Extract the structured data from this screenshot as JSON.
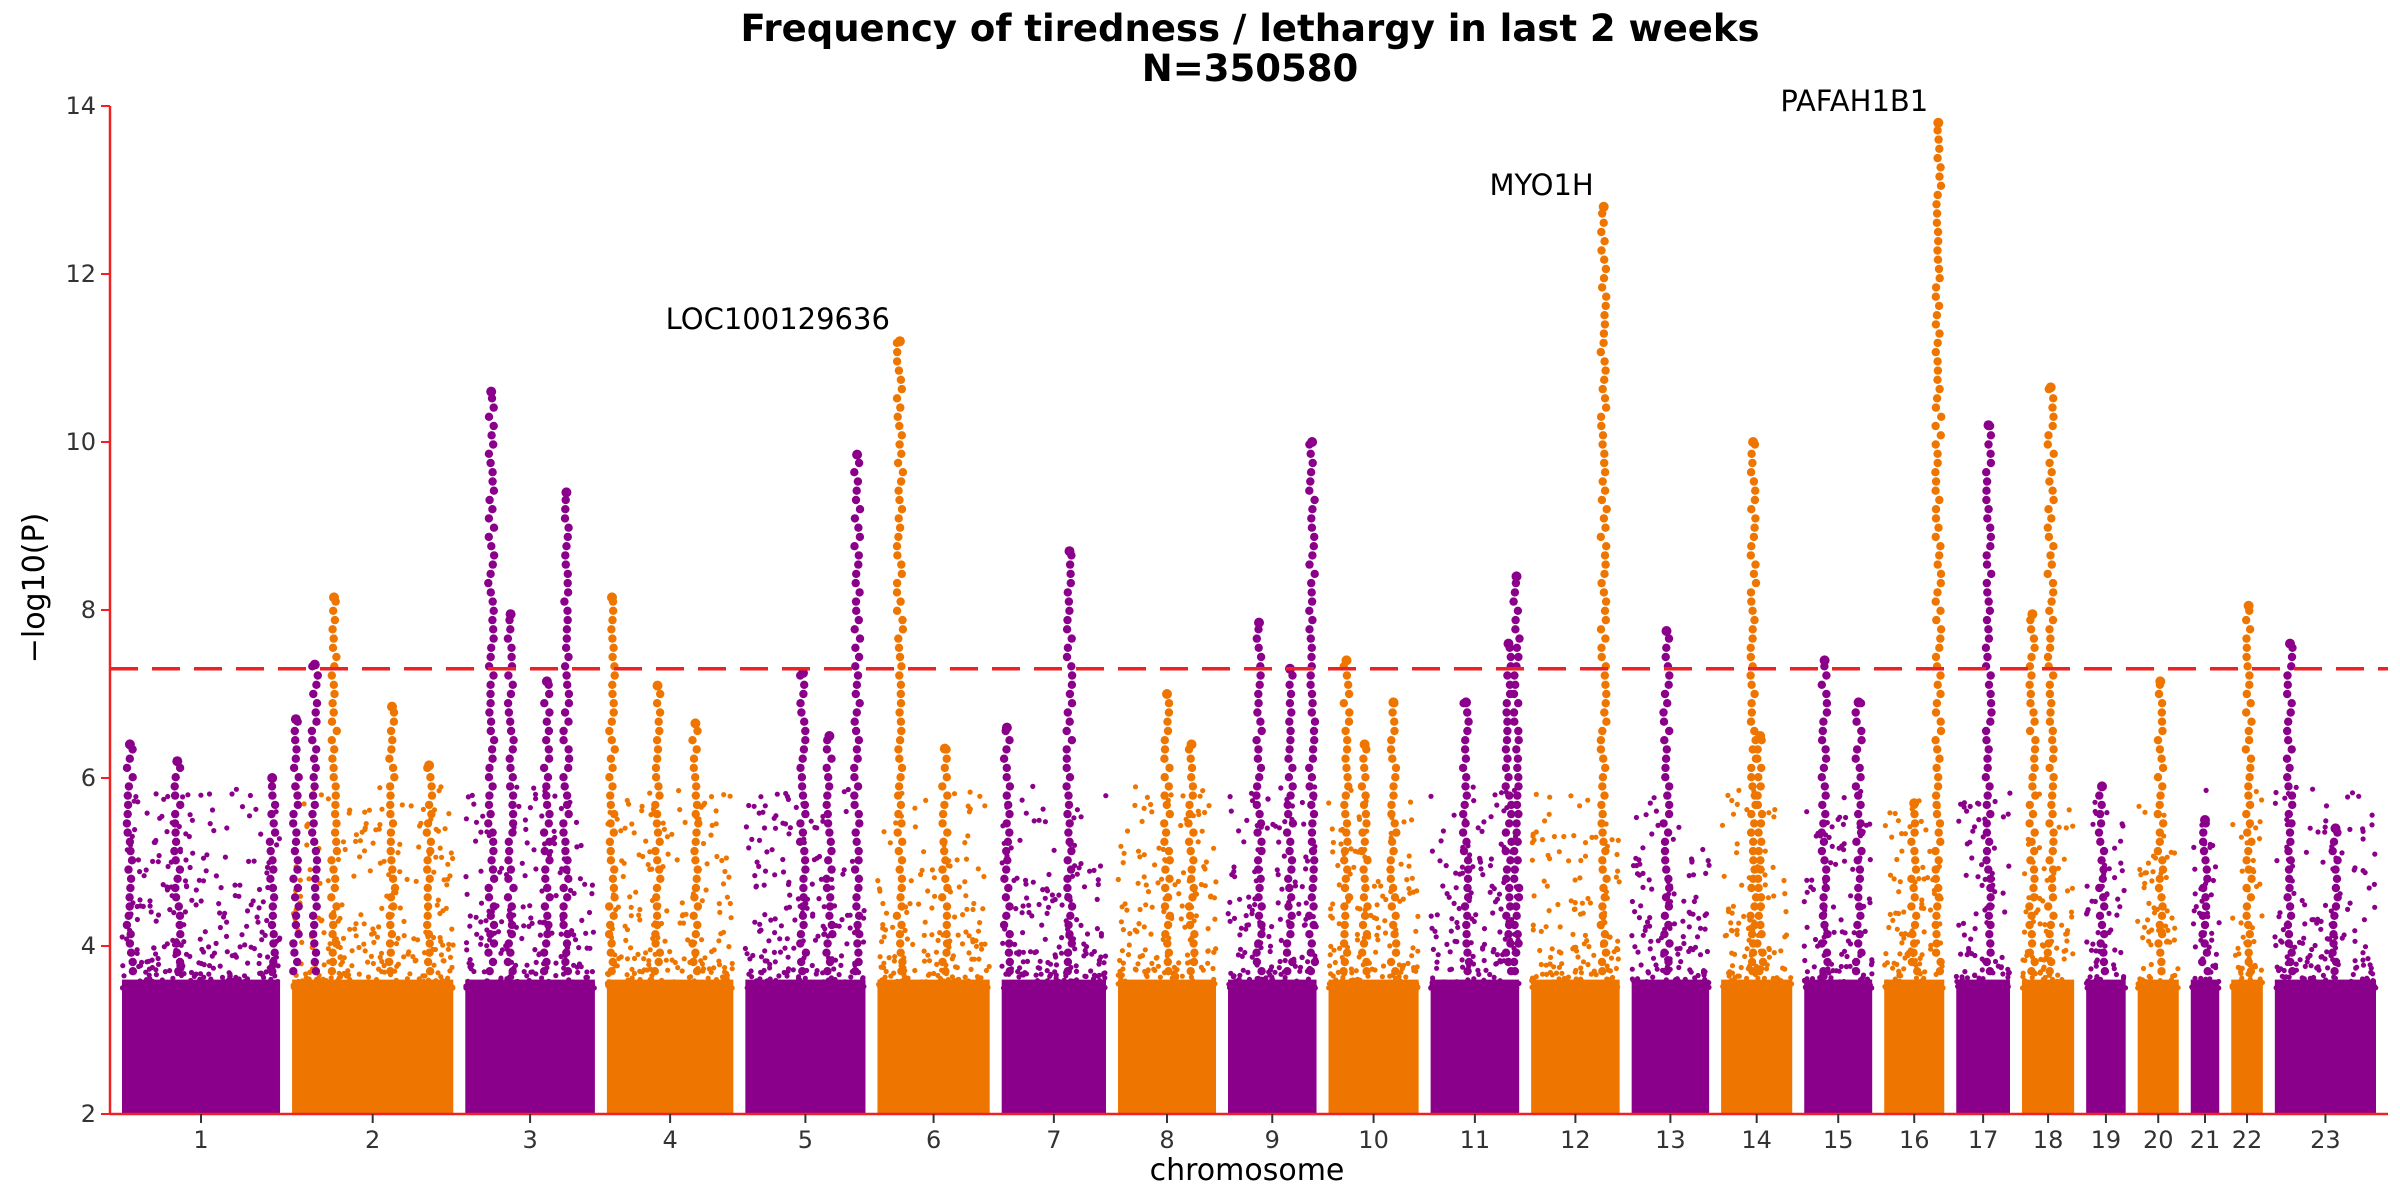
{
  "chart_data": {
    "type": "scatter",
    "title": "Frequency of tiredness / lethargy in last 2 weeks",
    "subtitle": "N=350580",
    "xlabel": "chromosome",
    "ylabel": "−log10(P)",
    "ylim": [
      2,
      14
    ],
    "yticks": [
      2,
      4,
      6,
      8,
      10,
      12,
      14
    ],
    "significance_threshold": 7.3,
    "colors": {
      "odd": "#8b008b",
      "even": "#ee7600",
      "threshold": "#ee2222",
      "axis": "#ee2222"
    },
    "chromosomes": [
      {
        "label": "1",
        "length": 1.0
      },
      {
        "label": "2",
        "length": 1.02
      },
      {
        "label": "3",
        "length": 0.82
      },
      {
        "label": "4",
        "length": 0.8
      },
      {
        "label": "5",
        "length": 0.76
      },
      {
        "label": "6",
        "length": 0.71
      },
      {
        "label": "7",
        "length": 0.66
      },
      {
        "label": "8",
        "length": 0.62
      },
      {
        "label": "9",
        "length": 0.56
      },
      {
        "label": "10",
        "length": 0.57
      },
      {
        "label": "11",
        "length": 0.56
      },
      {
        "label": "12",
        "length": 0.56
      },
      {
        "label": "13",
        "length": 0.49
      },
      {
        "label": "14",
        "length": 0.45
      },
      {
        "label": "15",
        "length": 0.43
      },
      {
        "label": "16",
        "length": 0.38
      },
      {
        "label": "17",
        "length": 0.34
      },
      {
        "label": "18",
        "length": 0.33
      },
      {
        "label": "19",
        "length": 0.25
      },
      {
        "label": "20",
        "length": 0.26
      },
      {
        "label": "21",
        "length": 0.18
      },
      {
        "label": "22",
        "length": 0.2
      },
      {
        "label": "23",
        "length": 0.64
      }
    ],
    "peaks": [
      {
        "chr": "1",
        "pos": 0.05,
        "y": 6.4
      },
      {
        "chr": "1",
        "pos": 0.35,
        "y": 6.2
      },
      {
        "chr": "1",
        "pos": 0.95,
        "y": 6.0
      },
      {
        "chr": "1",
        "pos": 1.1,
        "y": 6.7
      },
      {
        "chr": "1",
        "pos": 1.22,
        "y": 7.35
      },
      {
        "chr": "2",
        "pos": 0.26,
        "y": 8.15
      },
      {
        "chr": "2",
        "pos": 0.62,
        "y": 6.85
      },
      {
        "chr": "2",
        "pos": 0.85,
        "y": 6.15
      },
      {
        "chr": "3",
        "pos": 0.2,
        "y": 10.6
      },
      {
        "chr": "3",
        "pos": 0.35,
        "y": 7.95
      },
      {
        "chr": "3",
        "pos": 0.63,
        "y": 7.15
      },
      {
        "chr": "3",
        "pos": 0.78,
        "y": 9.4
      },
      {
        "chr": "4",
        "pos": 0.04,
        "y": 8.15
      },
      {
        "chr": "4",
        "pos": 0.4,
        "y": 7.1
      },
      {
        "chr": "4",
        "pos": 0.7,
        "y": 6.65
      },
      {
        "chr": "5",
        "pos": 0.48,
        "y": 7.25
      },
      {
        "chr": "5",
        "pos": 0.7,
        "y": 6.5
      },
      {
        "chr": "5",
        "pos": 0.93,
        "y": 9.85
      },
      {
        "chr": "6",
        "pos": 0.2,
        "y": 11.2
      },
      {
        "chr": "6",
        "pos": 0.6,
        "y": 6.35
      },
      {
        "chr": "7",
        "pos": 0.05,
        "y": 6.6
      },
      {
        "chr": "7",
        "pos": 0.65,
        "y": 8.7
      },
      {
        "chr": "8",
        "pos": 0.5,
        "y": 7.0
      },
      {
        "chr": "8",
        "pos": 0.75,
        "y": 6.4
      },
      {
        "chr": "9",
        "pos": 0.35,
        "y": 7.85
      },
      {
        "chr": "9",
        "pos": 0.7,
        "y": 7.3
      },
      {
        "chr": "9",
        "pos": 0.95,
        "y": 10.0
      },
      {
        "chr": "10",
        "pos": 0.2,
        "y": 7.4
      },
      {
        "chr": "10",
        "pos": 0.4,
        "y": 6.4
      },
      {
        "chr": "10",
        "pos": 0.72,
        "y": 6.9
      },
      {
        "chr": "11",
        "pos": 0.4,
        "y": 6.9
      },
      {
        "chr": "11",
        "pos": 0.88,
        "y": 7.6
      },
      {
        "chr": "11",
        "pos": 0.97,
        "y": 8.4
      },
      {
        "chr": "12",
        "pos": 0.82,
        "y": 12.8
      },
      {
        "chr": "13",
        "pos": 0.45,
        "y": 7.75
      },
      {
        "chr": "14",
        "pos": 0.45,
        "y": 10.0
      },
      {
        "chr": "14",
        "pos": 0.55,
        "y": 6.5
      },
      {
        "chr": "15",
        "pos": 0.3,
        "y": 7.4
      },
      {
        "chr": "15",
        "pos": 0.8,
        "y": 6.9
      },
      {
        "chr": "16",
        "pos": 0.5,
        "y": 5.7
      },
      {
        "chr": "16",
        "pos": 0.9,
        "y": 13.8
      },
      {
        "chr": "17",
        "pos": 0.6,
        "y": 10.2
      },
      {
        "chr": "18",
        "pos": 0.2,
        "y": 7.95
      },
      {
        "chr": "18",
        "pos": 0.55,
        "y": 10.65
      },
      {
        "chr": "19",
        "pos": 0.4,
        "y": 5.9
      },
      {
        "chr": "20",
        "pos": 0.55,
        "y": 7.15
      },
      {
        "chr": "21",
        "pos": 0.5,
        "y": 5.5
      },
      {
        "chr": "22",
        "pos": 0.55,
        "y": 8.05
      },
      {
        "chr": "23",
        "pos": 0.15,
        "y": 7.6
      },
      {
        "chr": "23",
        "pos": 0.6,
        "y": 5.4
      }
    ],
    "annotations": [
      {
        "label": "LOC100129636",
        "chr": "6",
        "pos": 0.2,
        "y": 11.2
      },
      {
        "label": "MYO1H",
        "chr": "12",
        "pos": 0.82,
        "y": 12.8
      },
      {
        "label": "PAFAH1B1",
        "chr": "16",
        "pos": 0.9,
        "y": 13.8
      }
    ]
  }
}
